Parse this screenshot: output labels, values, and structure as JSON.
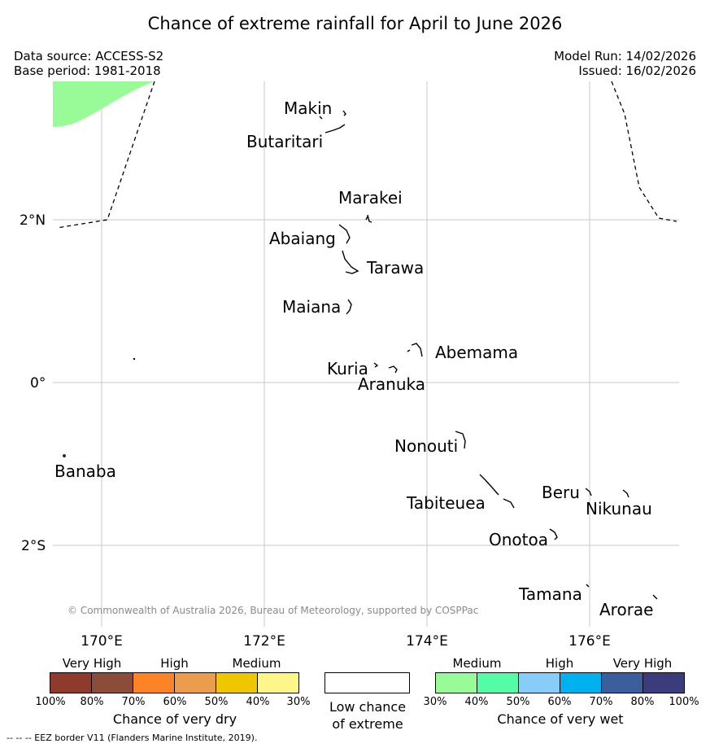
{
  "title": "Chance of extreme rainfall for April to June 2026",
  "data_source": "Data source: ACCESS-S2",
  "base_period": "Base period: 1981-2018",
  "model_run": "Model Run: 14/02/2026",
  "issued": "Issued: 16/02/2026",
  "credit": "© Commonwealth of Australia 2026, Bureau of Meteorology, supported by COSPPac",
  "footer": "--  --  -- EEZ border V11 (Flanders Marine Institute, 2019).",
  "map": {
    "lat_labels": [
      "2°N",
      "0°",
      "2°S"
    ],
    "lon_labels": [
      "170°E",
      "172°E",
      "174°E",
      "176°E"
    ],
    "places": [
      "Makin",
      "Butaritari",
      "Marakei",
      "Abaiang",
      "Tarawa",
      "Maiana",
      "Abemama",
      "Kuria",
      "Aranuka",
      "Banaba",
      "Nonouti",
      "Tabiteuea",
      "Beru",
      "Nikunau",
      "Onotoa",
      "Tamana",
      "Arorae"
    ]
  },
  "legend": {
    "dry": {
      "headers": [
        "Very High",
        "High",
        "Medium"
      ],
      "colors": [
        "#8e3b2e",
        "#8b4c3a",
        "#fd8426",
        "#eb9c4d",
        "#eec700",
        "#fff68a"
      ],
      "ticks": [
        "100%",
        "80%",
        "70%",
        "60%",
        "50%",
        "40%",
        "30%"
      ],
      "caption": "Chance of very dry"
    },
    "neutral": {
      "color": "#ffffff",
      "caption_line1": "Low chance",
      "caption_line2": "of extreme"
    },
    "wet": {
      "headers": [
        "Medium",
        "High",
        "Very High"
      ],
      "colors": [
        "#98fb98",
        "#55fca7",
        "#88cdfa",
        "#00b1f0",
        "#3b5f9c",
        "#3c3b7b"
      ],
      "ticks": [
        "30%",
        "40%",
        "50%",
        "60%",
        "70%",
        "80%",
        "100%"
      ],
      "caption": "Chance of very wet"
    }
  }
}
